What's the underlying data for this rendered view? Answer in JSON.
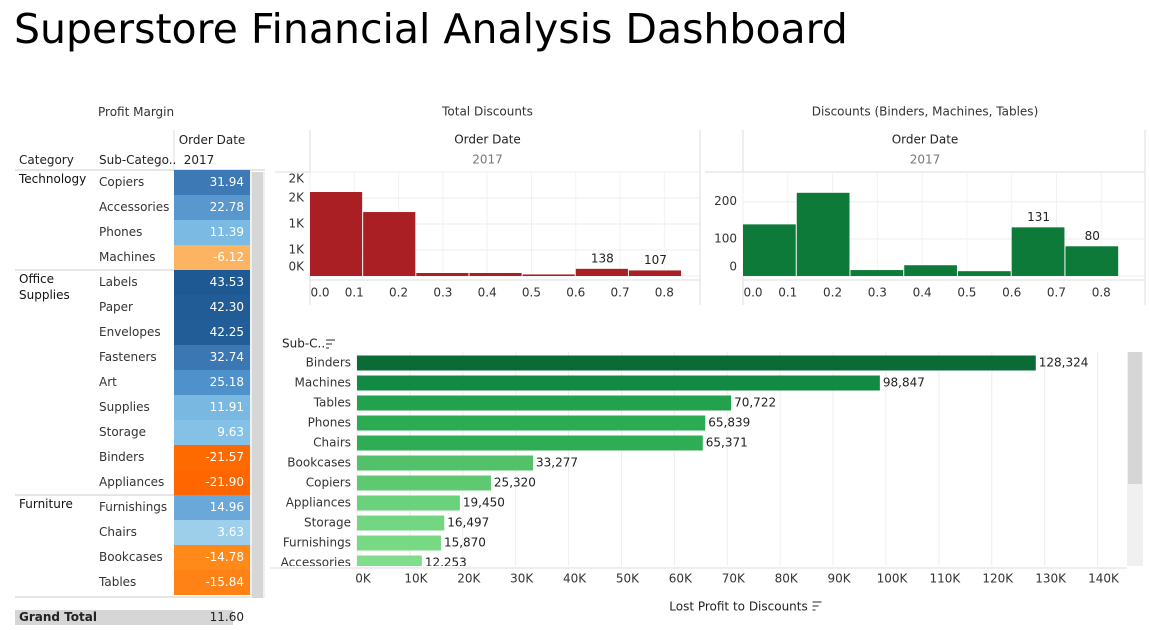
{
  "title": "Superstore Financial Analysis Dashboard",
  "profit_margin": {
    "title": "Profit Margin",
    "column_header": "Order Date",
    "column_value": "2017",
    "headers": [
      "Category",
      "Sub-Catego.."
    ],
    "groups": [
      {
        "name": "Technology",
        "rows": [
          {
            "name": "Copiers",
            "value": "31.94",
            "color": "#3d7ab5"
          },
          {
            "name": "Accessories",
            "value": "22.78",
            "color": "#5898cf"
          },
          {
            "name": "Phones",
            "value": "11.39",
            "color": "#7bbae2"
          },
          {
            "name": "Machines",
            "value": "-6.12",
            "color": "#fdb462"
          }
        ]
      },
      {
        "name": "Office Supplies",
        "rows": [
          {
            "name": "Labels",
            "value": "43.53",
            "color": "#1f5993"
          },
          {
            "name": "Paper",
            "value": "42.30",
            "color": "#215c97"
          },
          {
            "name": "Envelopes",
            "value": "42.25",
            "color": "#225d98"
          },
          {
            "name": "Fasteners",
            "value": "32.74",
            "color": "#3a77b3"
          },
          {
            "name": "Art",
            "value": "25.18",
            "color": "#4f91ca"
          },
          {
            "name": "Supplies",
            "value": "11.91",
            "color": "#79b8e1"
          },
          {
            "name": "Storage",
            "value": "9.63",
            "color": "#85c1e6"
          },
          {
            "name": "Binders",
            "value": "-21.57",
            "color": "#ff6a00"
          },
          {
            "name": "Appliances",
            "value": "-21.90",
            "color": "#ff6600"
          }
        ]
      },
      {
        "name": "Furniture",
        "rows": [
          {
            "name": "Furnishings",
            "value": "14.96",
            "color": "#69a8d8"
          },
          {
            "name": "Chairs",
            "value": "3.63",
            "color": "#9dcfea"
          },
          {
            "name": "Bookcases",
            "value": "-14.78",
            "color": "#ff8a1a"
          },
          {
            "name": "Tables",
            "value": "-15.84",
            "color": "#ff8216"
          }
        ]
      }
    ],
    "total_label": "Grand Total",
    "total": "11.60"
  },
  "chart_data": [
    {
      "type": "histogram",
      "title": "Total Discounts",
      "column_header": "Order Date",
      "column_value": "2017",
      "bins": [
        0,
        0.12,
        0.24,
        0.36,
        0.48,
        0.6,
        0.72,
        0.84
      ],
      "values": [
        1615,
        1230,
        58,
        58,
        30,
        138,
        107
      ],
      "value_labels": [
        null,
        null,
        null,
        null,
        null,
        "138",
        "107"
      ],
      "color": "#a91f23",
      "xlim": [
        0,
        0.85
      ],
      "xticks": [
        {
          "value": 0,
          "label": "0.0"
        },
        0.1,
        0.2,
        0.3,
        0.4,
        0.5,
        0.6,
        0.7,
        0.8
      ],
      "ylim": [
        0,
        2000
      ],
      "yticks": [
        {
          "value": 0,
          "label": "0K"
        },
        {
          "value": 500,
          "label": "1K"
        },
        {
          "value": 1000,
          "label": "1K"
        },
        {
          "value": 1500,
          "label": "2K"
        },
        {
          "value": 2000,
          "label": "2K"
        }
      ],
      "grid": true
    },
    {
      "type": "histogram",
      "title": "Discounts (Binders, Machines, Tables)",
      "column_header": "Order Date",
      "column_value": "2017",
      "bins": [
        0,
        0.12,
        0.24,
        0.36,
        0.48,
        0.6,
        0.72,
        0.84
      ],
      "values": [
        139,
        224,
        16,
        29,
        13,
        131,
        80
      ],
      "value_labels": [
        null,
        null,
        null,
        null,
        null,
        "131",
        "80"
      ],
      "color": "#0e7a3a",
      "xlim": [
        0,
        0.853
      ],
      "xticks": [
        {
          "value": 0,
          "label": "0.0"
        },
        0.1,
        0.2,
        0.3,
        0.4,
        0.5,
        0.6,
        0.7,
        0.8
      ],
      "ylim": [
        0,
        280
      ],
      "yticks": [
        0,
        100,
        200
      ],
      "grid": true
    },
    {
      "type": "hbar",
      "y_label": "Sub-C..",
      "x_label": "Lost Profit to Discounts",
      "categories": [
        "Binders",
        "Machines",
        "Tables",
        "Phones",
        "Chairs",
        "Bookcases",
        "Copiers",
        "Appliances",
        "Storage",
        "Furnishings",
        "Accessories"
      ],
      "values": [
        128324,
        98847,
        70722,
        65839,
        65371,
        33277,
        25320,
        19450,
        16497,
        15870,
        12253
      ],
      "value_labels": [
        "128,324",
        "98,847",
        "70,722",
        "65,839",
        "65,371",
        "33,277",
        "25,320",
        "19,450",
        "16,497",
        "15,870",
        "12,253"
      ],
      "colors": [
        "#0a6b36",
        "#138a43",
        "#23a24e",
        "#2cab53",
        "#2fad55",
        "#53c16a",
        "#5ec970",
        "#6ad27a",
        "#74d682",
        "#78d985",
        "#80dd8c"
      ],
      "xlim": [
        0,
        145000
      ],
      "xticks": [
        {
          "value": 0,
          "label": "0K"
        },
        {
          "value": 10000,
          "label": "10K"
        },
        {
          "value": 20000,
          "label": "20K"
        },
        {
          "value": 30000,
          "label": "30K"
        },
        {
          "value": 40000,
          "label": "40K"
        },
        {
          "value": 50000,
          "label": "50K"
        },
        {
          "value": 60000,
          "label": "60K"
        },
        {
          "value": 70000,
          "label": "70K"
        },
        {
          "value": 80000,
          "label": "80K"
        },
        {
          "value": 90000,
          "label": "90K"
        },
        {
          "value": 100000,
          "label": "100K"
        },
        {
          "value": 110000,
          "label": "110K"
        },
        {
          "value": 120000,
          "label": "120K"
        },
        {
          "value": 130000,
          "label": "130K"
        },
        {
          "value": 140000,
          "label": "140K"
        }
      ],
      "grid": true
    }
  ]
}
